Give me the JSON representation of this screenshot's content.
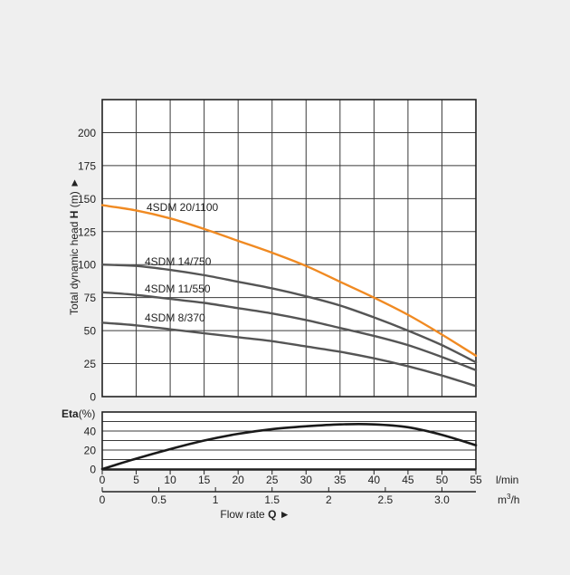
{
  "chart_data": [
    {
      "type": "line",
      "ylabel_text": "Total dynamic head ",
      "ylabel_bold": "H",
      "ylabel_unit": " (m) ►",
      "ylim": [
        0,
        200
      ],
      "yticks": [
        0,
        25,
        50,
        75,
        100,
        125,
        150,
        175,
        200
      ],
      "xlim": [
        0,
        55
      ],
      "grid": true,
      "colors": {
        "orange": "#f08a22",
        "gray": "#555555"
      },
      "series": [
        {
          "name": "4SDM 20/1100",
          "color": "#f08a22",
          "x": [
            0,
            5,
            10,
            15,
            20,
            25,
            30,
            35,
            40,
            45,
            50,
            55
          ],
          "y": [
            145,
            141,
            135,
            127,
            118,
            109,
            99,
            87,
            75,
            62,
            47,
            31
          ]
        },
        {
          "name": "4SDM 14/750",
          "color": "#555555",
          "x": [
            0,
            5,
            10,
            15,
            20,
            25,
            30,
            35,
            40,
            45,
            50,
            55
          ],
          "y": [
            100,
            99,
            96,
            92,
            87,
            82,
            76,
            69,
            60,
            50,
            39,
            26
          ]
        },
        {
          "name": "4SDM 11/550",
          "color": "#555555",
          "x": [
            0,
            5,
            10,
            15,
            20,
            25,
            30,
            35,
            40,
            45,
            50,
            55
          ],
          "y": [
            79,
            77,
            74,
            71,
            67,
            63,
            58,
            52,
            46,
            39,
            30,
            20
          ]
        },
        {
          "name": "4SDM 8/370",
          "color": "#555555",
          "x": [
            0,
            5,
            10,
            15,
            20,
            25,
            30,
            35,
            40,
            45,
            50,
            55
          ],
          "y": [
            56,
            54,
            51,
            48,
            45,
            42,
            38,
            34,
            29,
            23,
            16,
            8
          ]
        }
      ]
    },
    {
      "type": "line",
      "ylabel_bold": "Eta",
      "ylabel_unit": "(%)",
      "ylim": [
        0,
        60
      ],
      "yticks": [
        0,
        20,
        40
      ],
      "ygrid": [
        0,
        10,
        20,
        30,
        40,
        50,
        60
      ],
      "xlim": [
        0,
        55
      ],
      "xticks": [
        0,
        5,
        10,
        15,
        20,
        25,
        30,
        35,
        40,
        45,
        50,
        55
      ],
      "xunit": "l/min",
      "xticks2": [
        "0",
        "0.5",
        "1",
        "1.5",
        "2",
        "2.5",
        "3.0"
      ],
      "xticks2_values": [
        0,
        0.5,
        1,
        1.5,
        2,
        2.5,
        3.0
      ],
      "xunit2_base": "m",
      "xunit2_sup": "3",
      "xunit2_tail": "/h",
      "xlabel_text": "Flow rate ",
      "xlabel_bold": "Q",
      "xlabel_arrow": " ►",
      "grid": true,
      "series": [
        {
          "color": "#1a1a1a",
          "x": [
            0,
            5,
            10,
            15,
            20,
            25,
            30,
            35,
            40,
            45,
            50,
            55
          ],
          "y": [
            0,
            11,
            21,
            30,
            37,
            42,
            45,
            47,
            47,
            44,
            36,
            25
          ]
        }
      ]
    }
  ]
}
